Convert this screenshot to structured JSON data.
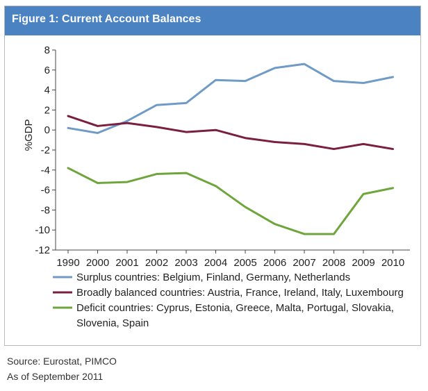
{
  "header": {
    "title": "Figure 1: Current Account Balances"
  },
  "footer": {
    "source": "Source: Eurostat, PIMCO",
    "as_of": "As of September 2011"
  },
  "colors": {
    "title_bar": "#4a82c2",
    "surplus": "#6f9bc6",
    "balanced": "#7a1f3d",
    "deficit": "#6ea63c"
  },
  "chart_data": {
    "type": "line",
    "title": "Figure 1: Current Account Balances",
    "xlabel": "",
    "ylabel": "%GDP",
    "categories": [
      "1990",
      "2000",
      "2001",
      "2002",
      "2003",
      "2004",
      "2005",
      "2006",
      "2007",
      "2008",
      "2009",
      "2010"
    ],
    "ylim": [
      -12,
      8
    ],
    "yticks": [
      8,
      6,
      4,
      2,
      0,
      -2,
      -4,
      -6,
      -8,
      -10,
      -12
    ],
    "grid": false,
    "legend_position": "bottom",
    "series": [
      {
        "name": "Surplus countries: Belgium, Finland, Germany, Netherlands",
        "legend_lines": [
          "Surplus countries: Belgium, Finland, Germany, Netherlands"
        ],
        "color": "#6f9bc6",
        "values": [
          0.2,
          -0.3,
          0.9,
          2.5,
          2.7,
          5.0,
          4.9,
          6.2,
          6.6,
          4.9,
          4.7,
          5.3
        ]
      },
      {
        "name": "Broadly balanced countries: Austria, France, Ireland, Italy, Luxembourg",
        "legend_lines": [
          "Broadly balanced countries: Austria, France, Ireland, Italy, Luxembourg"
        ],
        "color": "#7a1f3d",
        "values": [
          1.4,
          0.4,
          0.7,
          0.3,
          -0.2,
          0.0,
          -0.8,
          -1.2,
          -1.4,
          -1.9,
          -1.4,
          -1.9
        ]
      },
      {
        "name": "Deficit countries: Cyprus, Estonia, Greece, Malta, Portugal, Slovakia, Slovenia, Spain",
        "legend_lines": [
          "Deficit countries: Cyprus, Estonia, Greece, Malta, Portugal, Slovakia,",
          "Slovenia, Spain"
        ],
        "color": "#6ea63c",
        "values": [
          -3.8,
          -5.3,
          -5.2,
          -4.4,
          -4.3,
          -5.6,
          -7.7,
          -9.4,
          -10.4,
          -10.4,
          -6.4,
          -5.8
        ]
      }
    ]
  }
}
